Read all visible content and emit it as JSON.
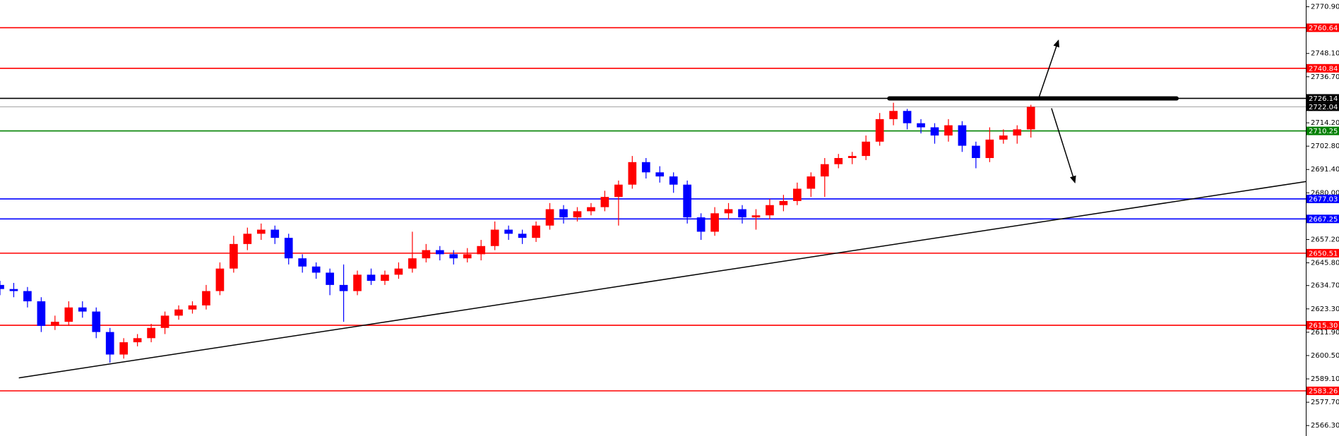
{
  "chart_data": {
    "type": "candlestick",
    "up_color": "#ff0000",
    "down_color": "#0000ff",
    "xlim": [
      0,
      95
    ],
    "ylim": [
      2561.2,
      2774.2
    ],
    "yticks": [
      {
        "value": 2770.9,
        "label": "2770.90"
      },
      {
        "value": 2748.1,
        "label": "2748.10"
      },
      {
        "value": 2736.7,
        "label": "2736.70"
      },
      {
        "value": 2714.2,
        "label": "2714.20"
      },
      {
        "value": 2702.8,
        "label": "2702.80"
      },
      {
        "value": 2691.4,
        "label": "2691.40"
      },
      {
        "value": 2680,
        "label": "2680.00"
      },
      {
        "value": 2657.2,
        "label": "2657.20"
      },
      {
        "value": 2645.8,
        "label": "2645.80"
      },
      {
        "value": 2634.7,
        "label": "2634.70"
      },
      {
        "value": 2623.3,
        "label": "2623.30"
      },
      {
        "value": 2611.9,
        "label": "2611.90"
      },
      {
        "value": 2600.5,
        "label": "2600.50"
      },
      {
        "value": 2589.1,
        "label": "2589.10"
      },
      {
        "value": 2577.7,
        "label": "2577.70"
      },
      {
        "value": 2566.3,
        "label": "2566.30"
      }
    ],
    "candles": [
      [
        2635,
        2637,
        2630,
        2633
      ],
      [
        2633,
        2636,
        2629,
        2632
      ],
      [
        2632,
        2634,
        2624,
        2627
      ],
      [
        2627,
        2629,
        2612,
        2615
      ],
      [
        2615,
        2620,
        2613,
        2617
      ],
      [
        2617,
        2627,
        2615,
        2624
      ],
      [
        2624,
        2627,
        2619,
        2622
      ],
      [
        2622,
        2624,
        2609,
        2612
      ],
      [
        2612,
        2614,
        2597,
        2601
      ],
      [
        2601,
        2609,
        2599,
        2607
      ],
      [
        2607,
        2611,
        2605,
        2609
      ],
      [
        2609,
        2616,
        2607,
        2614
      ],
      [
        2614,
        2622,
        2611,
        2620
      ],
      [
        2620,
        2625,
        2618,
        2623
      ],
      [
        2623,
        2627,
        2621,
        2625
      ],
      [
        2625,
        2635,
        2623,
        2632
      ],
      [
        2632,
        2646,
        2630,
        2643
      ],
      [
        2643,
        2659,
        2641,
        2655
      ],
      [
        2655,
        2663,
        2652,
        2660
      ],
      [
        2660,
        2665,
        2657,
        2662
      ],
      [
        2662,
        2664,
        2655,
        2658
      ],
      [
        2658,
        2660,
        2645,
        2648
      ],
      [
        2648,
        2650,
        2641,
        2644
      ],
      [
        2644,
        2646,
        2638,
        2641
      ],
      [
        2641,
        2643,
        2630,
        2635
      ],
      [
        2635,
        2645,
        2617,
        2632
      ],
      [
        2632,
        2642,
        2630,
        2640
      ],
      [
        2640,
        2643,
        2635,
        2637
      ],
      [
        2637,
        2642,
        2635,
        2640
      ],
      [
        2640,
        2646,
        2638,
        2643
      ],
      [
        2643,
        2661,
        2641,
        2648
      ],
      [
        2648,
        2655,
        2646,
        2652
      ],
      [
        2652,
        2654,
        2647,
        2650
      ],
      [
        2650,
        2652,
        2645,
        2648
      ],
      [
        2648,
        2653,
        2646,
        2650
      ],
      [
        2650,
        2657,
        2647,
        2654
      ],
      [
        2654,
        2666,
        2652,
        2662
      ],
      [
        2662,
        2664,
        2657,
        2660
      ],
      [
        2660,
        2662,
        2655,
        2658
      ],
      [
        2658,
        2666,
        2656,
        2664
      ],
      [
        2664,
        2675,
        2662,
        2672
      ],
      [
        2672,
        2674,
        2665,
        2668
      ],
      [
        2668,
        2673,
        2666,
        2671
      ],
      [
        2671,
        2675,
        2669,
        2673
      ],
      [
        2673,
        2681,
        2671,
        2678
      ],
      [
        2678,
        2686,
        2664,
        2684
      ],
      [
        2684,
        2698,
        2682,
        2695
      ],
      [
        2695,
        2697,
        2687,
        2690
      ],
      [
        2690,
        2693,
        2685,
        2688
      ],
      [
        2688,
        2690,
        2680,
        2684
      ],
      [
        2684,
        2686,
        2665,
        2668
      ],
      [
        2668,
        2670,
        2657,
        2661
      ],
      [
        2661,
        2673,
        2659,
        2670
      ],
      [
        2670,
        2675,
        2667,
        2672
      ],
      [
        2672,
        2674,
        2665,
        2668
      ],
      [
        2668,
        2672,
        2662,
        2669
      ],
      [
        2669,
        2677,
        2667,
        2674
      ],
      [
        2674,
        2679,
        2671,
        2676
      ],
      [
        2676,
        2685,
        2674,
        2682
      ],
      [
        2682,
        2690,
        2678,
        2688
      ],
      [
        2688,
        2697,
        2678,
        2694
      ],
      [
        2694,
        2699,
        2692,
        2697
      ],
      [
        2697,
        2700,
        2694,
        2698
      ],
      [
        2698,
        2708,
        2696,
        2705
      ],
      [
        2705,
        2719,
        2703,
        2716
      ],
      [
        2716,
        2724,
        2713,
        2720
      ],
      [
        2720,
        2721,
        2711,
        2714
      ],
      [
        2714,
        2716,
        2709,
        2712
      ],
      [
        2712,
        2714,
        2704,
        2708
      ],
      [
        2708,
        2716,
        2705,
        2713
      ],
      [
        2713,
        2715,
        2700,
        2703
      ],
      [
        2703,
        2705,
        2692,
        2697
      ],
      [
        2697,
        2712,
        2695,
        2706
      ],
      [
        2706,
        2711,
        2704,
        2708
      ],
      [
        2708,
        2713,
        2704,
        2711
      ],
      [
        2711,
        2723,
        2707,
        2722
      ]
    ],
    "levels": [
      {
        "value": 2760.64,
        "color": "#ff0000"
      },
      {
        "value": 2740.84,
        "color": "#ff0000"
      },
      {
        "value": 2726.14,
        "color": "#000000"
      },
      {
        "value": 2722.04,
        "color": "#a0a0a0"
      },
      {
        "value": 2710.25,
        "color": "#008000"
      },
      {
        "value": 2677.03,
        "color": "#0000ff"
      },
      {
        "value": 2667.25,
        "color": "#0000ff"
      },
      {
        "value": 2650.51,
        "color": "#ff0000"
      },
      {
        "value": 2615.3,
        "label": "2615.30",
        "color": "#ff0000"
      },
      {
        "value": 2583.26,
        "color": "#ff0000"
      }
    ],
    "lines": [
      {
        "style": "thin",
        "x": [
          1.37,
          95
        ],
        "y": [
          2589.6,
          2685.5
        ]
      },
      {
        "style": "thick",
        "x": [
          64.7,
          85.6
        ],
        "y": [
          2726.14,
          2726.14
        ]
      },
      {
        "style": "arrow",
        "x": [
          75.6,
          77.0
        ],
        "y": [
          2726.9,
          2754.4
        ]
      },
      {
        "style": "arrow",
        "x": [
          76.5,
          78.2
        ],
        "y": [
          2721.3,
          2685.1
        ]
      }
    ]
  }
}
